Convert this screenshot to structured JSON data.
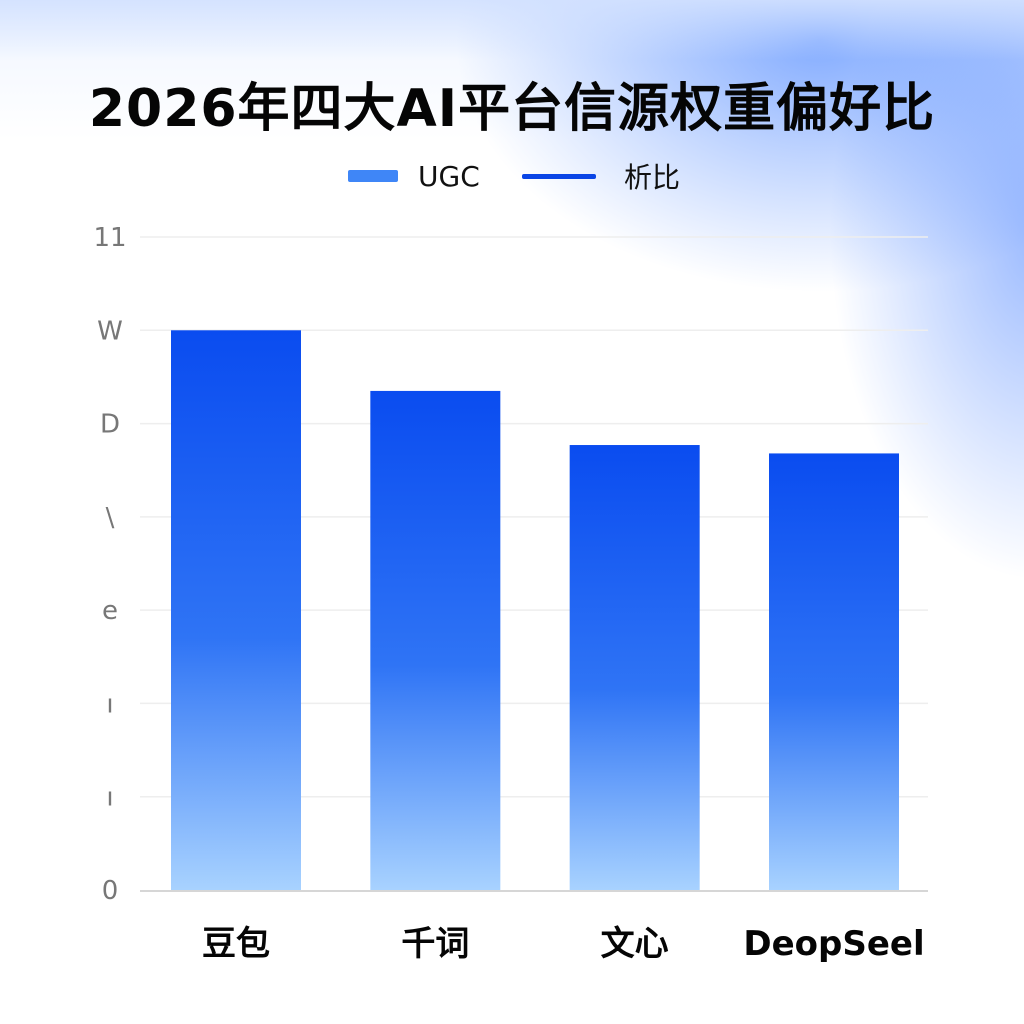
{
  "colors": {
    "bar_top": "#0a4cf0",
    "bar_bottom": "#a8d2ff",
    "legend_ugc": "#3f86f7",
    "legend_line": "#0a45e6",
    "grid": "#eeeeee",
    "axis": "#d6d6d6"
  },
  "chart_data": {
    "type": "bar",
    "title": "2026年四大AI平台信源权重偏好比",
    "legend": [
      {
        "label": "UGC",
        "kind": "swatch"
      },
      {
        "label": "析比",
        "kind": "line"
      }
    ],
    "legend_position": "top",
    "y_tick_labels": [
      "0",
      "ı",
      "ı",
      "e",
      "\\",
      "D",
      "W",
      "11"
    ],
    "ylim": [
      0,
      7
    ],
    "grid": true,
    "categories": [
      "豆包",
      "千词",
      "文心",
      "DeopSeel"
    ],
    "series": [
      {
        "name": "UGC",
        "values": [
          6.0,
          5.35,
          4.77,
          4.68
        ]
      }
    ]
  }
}
